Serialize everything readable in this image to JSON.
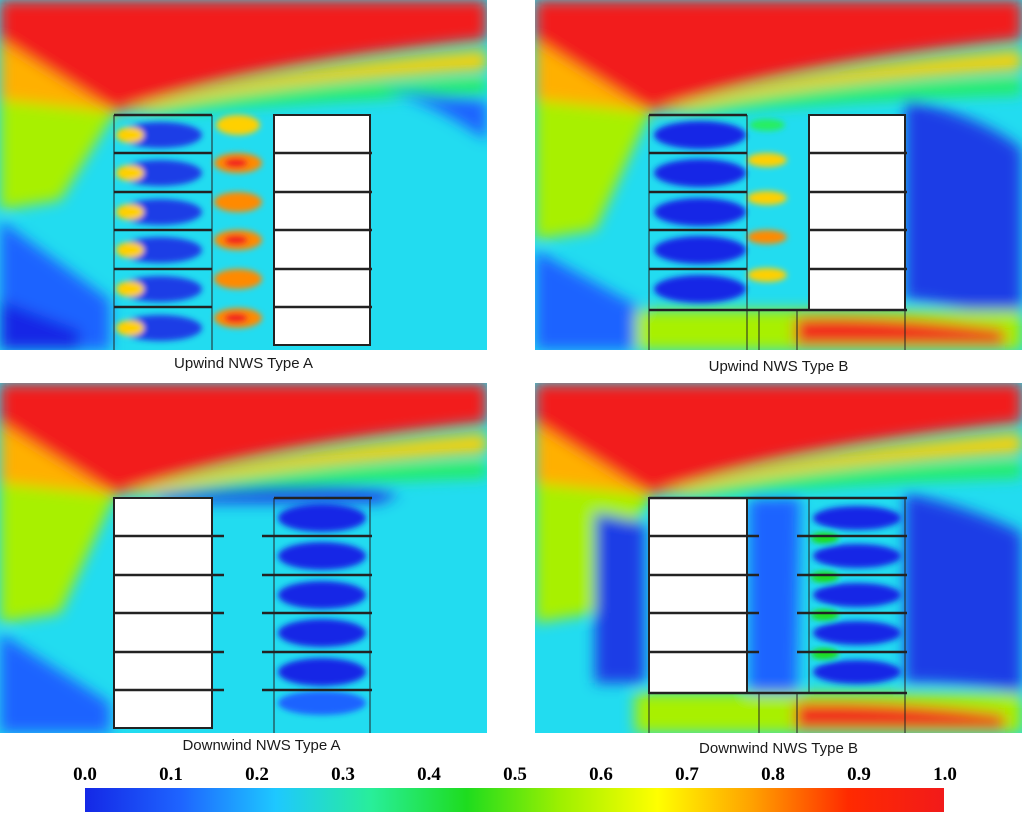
{
  "panels": [
    {
      "caption": "Upwind NWS Type A",
      "wind_side": "upwind",
      "type": "A"
    },
    {
      "caption": "Upwind NWS Type B",
      "wind_side": "upwind",
      "type": "B"
    },
    {
      "caption": "Downwind NWS Type A",
      "wind_side": "downwind",
      "type": "A"
    },
    {
      "caption": "Downwind NWS Type B",
      "wind_side": "downwind",
      "type": "B"
    }
  ],
  "legend": {
    "ticks": [
      "0.0",
      "0.1",
      "0.2",
      "0.3",
      "0.4",
      "0.5",
      "0.6",
      "0.7",
      "0.8",
      "0.9",
      "1.0"
    ],
    "colors": [
      "#1428e6",
      "#1e64ff",
      "#1ec8ff",
      "#28ee9a",
      "#1edc1e",
      "#a0f000",
      "#ffff00",
      "#ffa000",
      "#ff2a00",
      "#f21a1a"
    ]
  },
  "colors": {
    "free_stream": "#f21a1a",
    "background_flow": "#22dcf0",
    "low_speed": "#1e3ce6",
    "building": "#ffffff",
    "outline": "#222222"
  }
}
